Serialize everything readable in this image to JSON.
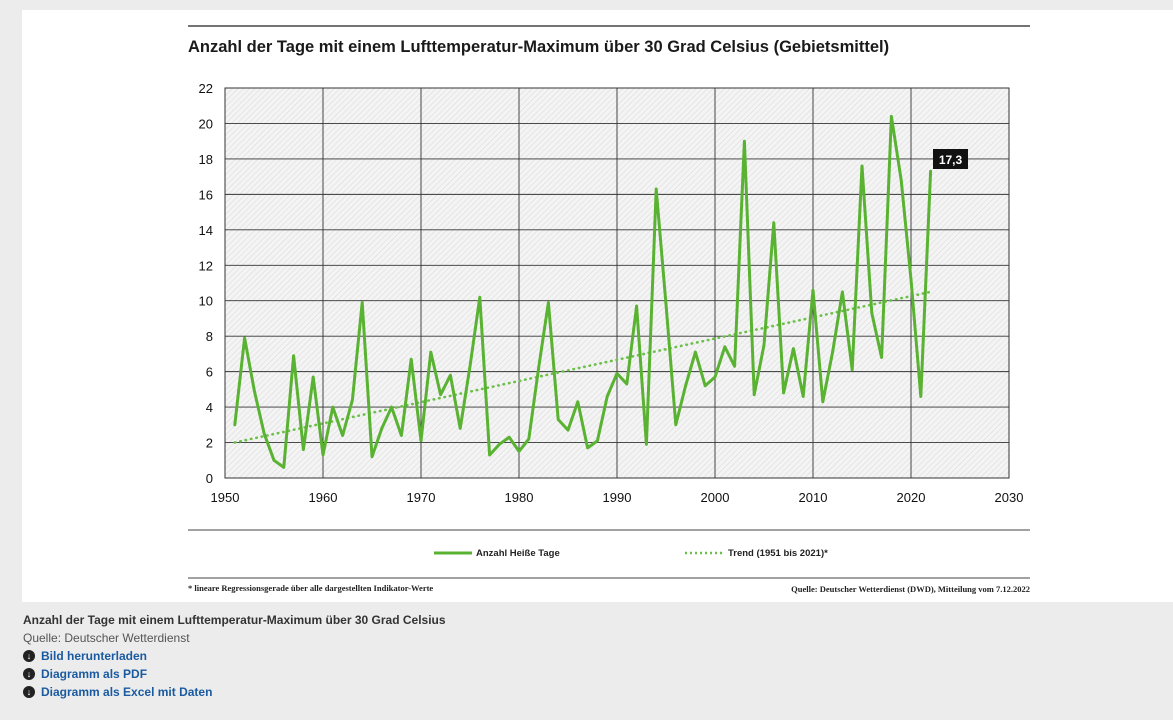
{
  "chart_data": {
    "type": "line",
    "title": "Anzahl der Tage mit einem Lufttemperatur-Maximum über 30 Grad Celsius (Gebietsmittel)",
    "xlim": [
      1950,
      2030
    ],
    "ylim": [
      0,
      22
    ],
    "x_ticks": [
      "1950",
      "1960",
      "1970",
      "1980",
      "1990",
      "2000",
      "2010",
      "2020",
      "2030"
    ],
    "y_ticks": [
      "0",
      "2",
      "4",
      "6",
      "8",
      "10",
      "12",
      "14",
      "16",
      "18",
      "20",
      "22"
    ],
    "grid": true,
    "legend_position": "bottom",
    "series": [
      {
        "name": "Anzahl Heiße Tage",
        "color": "#5ab232",
        "style": "solid",
        "x": [
          1951,
          1952,
          1953,
          1954,
          1955,
          1956,
          1957,
          1958,
          1959,
          1960,
          1961,
          1962,
          1963,
          1964,
          1965,
          1966,
          1967,
          1968,
          1969,
          1970,
          1971,
          1972,
          1973,
          1974,
          1975,
          1976,
          1977,
          1978,
          1979,
          1980,
          1981,
          1982,
          1983,
          1984,
          1985,
          1986,
          1987,
          1988,
          1989,
          1990,
          1991,
          1992,
          1993,
          1994,
          1995,
          1996,
          1997,
          1998,
          1999,
          2000,
          2001,
          2002,
          2003,
          2004,
          2005,
          2006,
          2007,
          2008,
          2009,
          2010,
          2011,
          2012,
          2013,
          2014,
          2015,
          2016,
          2017,
          2018,
          2019,
          2020,
          2021,
          2022
        ],
        "values": [
          3.0,
          7.9,
          4.9,
          2.5,
          1.0,
          0.6,
          6.9,
          1.6,
          5.7,
          1.3,
          4.0,
          2.4,
          4.4,
          9.9,
          1.2,
          2.8,
          4.0,
          2.4,
          6.7,
          2.1,
          7.1,
          4.7,
          5.8,
          2.8,
          6.3,
          10.2,
          1.3,
          1.9,
          2.3,
          1.5,
          2.2,
          6.2,
          9.9,
          3.3,
          2.7,
          4.3,
          1.7,
          2.1,
          4.6,
          5.9,
          5.3,
          9.7,
          1.9,
          16.3,
          9.8,
          3.0,
          5.2,
          7.1,
          5.2,
          5.7,
          7.4,
          6.3,
          19.0,
          4.7,
          7.5,
          14.4,
          4.8,
          7.3,
          4.6,
          10.6,
          4.3,
          7.1,
          10.5,
          6.1,
          17.6,
          9.3,
          6.8,
          20.4,
          16.8,
          11.2,
          4.6,
          17.3
        ]
      },
      {
        "name": "Trend (1951 bis 2021)*",
        "color": "#6cc04a",
        "style": "dotted",
        "x": [
          1951,
          2022
        ],
        "values": [
          2.0,
          10.5
        ]
      }
    ],
    "annotations": [
      {
        "text": "17,3",
        "x": 2022,
        "y": 17.3
      }
    ]
  },
  "footnote": "* lineare Regressionsgerade über alle dargestellten Indikator-Werte",
  "source_note": "Quelle: Deutscher Wetterdienst (DWD), Mitteilung vom 7.12.2022",
  "caption": {
    "title": "Anzahl der Tage mit einem Lufttemperatur-Maximum über 30 Grad Celsius",
    "source": "Quelle: Deutscher Wetterdienst",
    "links": [
      {
        "label": "Bild herunterladen",
        "icon": "download-icon"
      },
      {
        "label": "Diagramm als PDF",
        "icon": "download-icon"
      },
      {
        "label": "Diagramm als Excel mit Daten",
        "icon": "download-icon"
      }
    ]
  },
  "colors": {
    "series_line": "#5ab232",
    "trend_line": "#6cc04a",
    "link": "#1a5aa0",
    "badge": "#111111"
  }
}
